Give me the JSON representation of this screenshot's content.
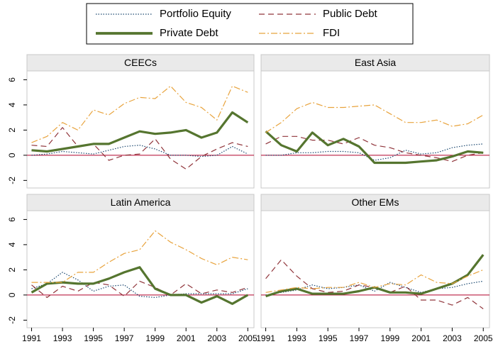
{
  "chart_data": [
    {
      "type": "line",
      "title": "CEECs",
      "x": [
        1991,
        1992,
        1993,
        1994,
        1995,
        1996,
        1997,
        1998,
        1999,
        2000,
        2001,
        2002,
        2003,
        2004,
        2005
      ],
      "xlim": [
        1990.7,
        2005.4
      ],
      "ylim": [
        -2.6,
        6.7
      ],
      "yticks": [
        -2,
        0,
        2,
        4,
        6
      ],
      "zero_line_color": "#b0002a",
      "series": [
        {
          "name": "Portfolio Equity",
          "color": "#1a476f",
          "dash": "1.5 2",
          "values": [
            0.0,
            0.1,
            0.3,
            0.2,
            0.1,
            0.4,
            0.7,
            0.8,
            0.5,
            0.0,
            0.0,
            -0.1,
            0.0,
            0.7,
            0.1
          ]
        },
        {
          "name": "Public Debt",
          "color": "#90353b",
          "dash": "8 5",
          "values": [
            0.8,
            0.7,
            2.2,
            0.7,
            0.9,
            -0.4,
            0.0,
            0.1,
            1.3,
            -0.3,
            -1.1,
            -0.1,
            0.5,
            1.0,
            0.7
          ]
        },
        {
          "name": "Private Debt",
          "color": "#55752f",
          "dash": "none",
          "values": [
            0.4,
            0.3,
            0.5,
            0.7,
            0.9,
            0.9,
            1.4,
            1.9,
            1.7,
            1.8,
            2.0,
            1.4,
            1.8,
            3.4,
            2.6
          ]
        },
        {
          "name": "FDI",
          "color": "#e8a33c",
          "dash": "9 3 2 3",
          "values": [
            1.0,
            1.5,
            2.6,
            2.0,
            3.6,
            3.2,
            4.1,
            4.6,
            4.5,
            5.5,
            4.2,
            3.8,
            2.8,
            5.5,
            5.0
          ]
        }
      ]
    },
    {
      "type": "line",
      "title": "East Asia",
      "x": [
        1991,
        1992,
        1993,
        1994,
        1995,
        1996,
        1997,
        1998,
        1999,
        2000,
        2001,
        2002,
        2003,
        2004,
        2005
      ],
      "xlim": [
        1990.7,
        2005.4
      ],
      "ylim": [
        -2.6,
        6.7
      ],
      "zero_line_color": "#b0002a",
      "series": [
        {
          "color": "#1a476f",
          "dash": "1.5 2",
          "values": [
            0.0,
            0.0,
            0.2,
            0.2,
            0.3,
            0.3,
            0.2,
            -0.4,
            -0.2,
            0.4,
            0.1,
            0.2,
            0.6,
            0.8,
            0.9
          ]
        },
        {
          "color": "#90353b",
          "dash": "8 5",
          "values": [
            0.9,
            1.5,
            1.5,
            1.2,
            1.2,
            0.9,
            1.4,
            0.8,
            0.6,
            0.2,
            0.0,
            -0.2,
            -0.5,
            0.0,
            0.2
          ]
        },
        {
          "color": "#55752f",
          "dash": "none",
          "values": [
            1.9,
            0.8,
            0.3,
            1.8,
            0.8,
            1.3,
            0.7,
            -0.6,
            -0.6,
            -0.6,
            -0.5,
            -0.4,
            -0.1,
            0.3,
            0.2
          ]
        },
        {
          "color": "#e8a33c",
          "dash": "9 3 2 3",
          "values": [
            1.8,
            2.6,
            3.7,
            4.2,
            3.8,
            3.8,
            3.9,
            4.0,
            3.3,
            2.6,
            2.6,
            2.8,
            2.3,
            2.5,
            3.2
          ]
        }
      ]
    },
    {
      "type": "line",
      "title": "Latin America",
      "x": [
        1991,
        1992,
        1993,
        1994,
        1995,
        1996,
        1997,
        1998,
        1999,
        2000,
        2001,
        2002,
        2003,
        2004,
        2005
      ],
      "xlim": [
        1990.7,
        2005.4
      ],
      "ylim": [
        -2.6,
        6.7
      ],
      "yticks": [
        -2,
        0,
        2,
        4,
        6
      ],
      "xticks": [
        1991,
        1993,
        1995,
        1997,
        1999,
        2001,
        2003,
        2005
      ],
      "zero_line_color": "#b0002a",
      "series": [
        {
          "color": "#1a476f",
          "dash": "1.5 2",
          "values": [
            0.5,
            0.9,
            1.8,
            1.2,
            0.3,
            0.7,
            0.8,
            -0.1,
            -0.2,
            0.0,
            0.1,
            0.1,
            0.1,
            0.1,
            0.5
          ]
        },
        {
          "color": "#90353b",
          "dash": "8 5",
          "values": [
            0.8,
            -0.2,
            0.7,
            0.3,
            1.0,
            0.8,
            -0.1,
            1.1,
            0.6,
            0.0,
            0.9,
            0.1,
            0.4,
            0.2,
            0.6
          ]
        },
        {
          "color": "#55752f",
          "dash": "none",
          "values": [
            0.2,
            0.9,
            1.0,
            0.9,
            0.9,
            1.3,
            1.8,
            2.2,
            0.5,
            0.0,
            0.0,
            -0.6,
            -0.1,
            -0.7,
            0.0
          ]
        },
        {
          "color": "#e8a33c",
          "dash": "9 3 2 3",
          "values": [
            1.0,
            1.0,
            1.0,
            1.8,
            1.8,
            2.6,
            3.3,
            3.6,
            5.1,
            4.2,
            3.6,
            2.9,
            2.4,
            3.0,
            2.8
          ]
        }
      ]
    },
    {
      "type": "line",
      "title": "Other EMs",
      "x": [
        1991,
        1992,
        1993,
        1994,
        1995,
        1996,
        1997,
        1998,
        1999,
        2000,
        2001,
        2002,
        2003,
        2004,
        2005
      ],
      "xlim": [
        1990.7,
        2005.4
      ],
      "ylim": [
        -2.6,
        6.7
      ],
      "xticks": [
        1991,
        1993,
        1995,
        1997,
        1999,
        2001,
        2003,
        2005
      ],
      "zero_line_color": "#b0002a",
      "series": [
        {
          "color": "#1a476f",
          "dash": "1.5 2",
          "values": [
            0.0,
            0.2,
            0.4,
            0.8,
            0.5,
            0.6,
            0.8,
            0.3,
            1.0,
            0.6,
            0.2,
            0.5,
            0.6,
            0.9,
            1.1
          ]
        },
        {
          "color": "#90353b",
          "dash": "8 5",
          "values": [
            1.3,
            2.8,
            1.5,
            0.5,
            0.2,
            0.3,
            0.8,
            0.6,
            0.2,
            0.7,
            -0.4,
            -0.4,
            -0.8,
            -0.2,
            -1.1
          ]
        },
        {
          "color": "#55752f",
          "dash": "none",
          "values": [
            -0.1,
            0.3,
            0.5,
            0.1,
            0.1,
            0.1,
            0.3,
            0.6,
            0.2,
            0.2,
            0.1,
            0.5,
            0.9,
            1.6,
            3.2
          ]
        },
        {
          "color": "#e8a33c",
          "dash": "9 3 2 3",
          "values": [
            0.2,
            0.4,
            0.6,
            0.5,
            0.6,
            0.6,
            1.0,
            0.6,
            0.9,
            0.8,
            1.6,
            1.0,
            0.9,
            1.5,
            2.0
          ]
        }
      ]
    }
  ]
}
